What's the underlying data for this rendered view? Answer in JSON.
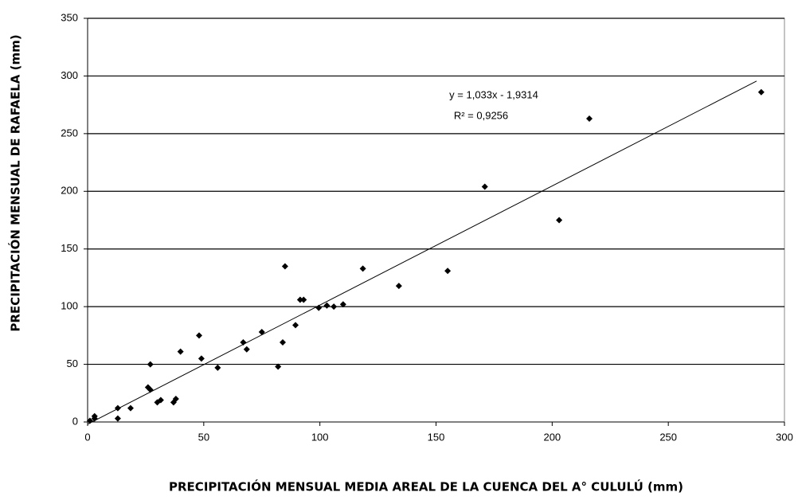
{
  "chart_data": {
    "type": "scatter",
    "xlabel": "PRECIPITACIÓN MENSUAL MEDIA AREAL DE LA CUENCA DEL A° CULULÚ (mm)",
    "ylabel": "PRECIPITACIÓN MENSUAL DE RAFAELA (mm)",
    "x": [
      1,
      3,
      3,
      13,
      13,
      18.5,
      26,
      27,
      27,
      30,
      31.5,
      37,
      38,
      40,
      48,
      49,
      56,
      67,
      68.5,
      75,
      82,
      84,
      85,
      89.5,
      91.5,
      93,
      99.5,
      103,
      106,
      110,
      118.5,
      134,
      155,
      171,
      203,
      216,
      290
    ],
    "values": [
      1,
      5,
      3,
      12,
      3,
      12,
      30,
      28,
      50,
      17,
      19,
      17,
      20,
      61,
      75,
      55,
      47,
      69,
      63,
      78,
      48,
      69,
      135,
      84,
      106,
      106,
      99,
      101,
      100,
      102,
      133,
      118,
      131,
      204,
      175,
      263,
      286
    ],
    "color": "#000000",
    "xlim": [
      0,
      300
    ],
    "xticks": [
      0,
      50,
      100,
      150,
      200,
      250,
      300
    ],
    "ylim": [
      0,
      350
    ],
    "yticks": [
      0,
      50,
      100,
      150,
      200,
      250,
      300,
      350
    ],
    "grid": true,
    "trendline": {
      "slope": 1.033,
      "intercept": -1.9314,
      "x_range": [
        0,
        288
      ],
      "equation": "y = 1,033x - 1,9314",
      "r2_label": "R² = 0,9256"
    }
  }
}
